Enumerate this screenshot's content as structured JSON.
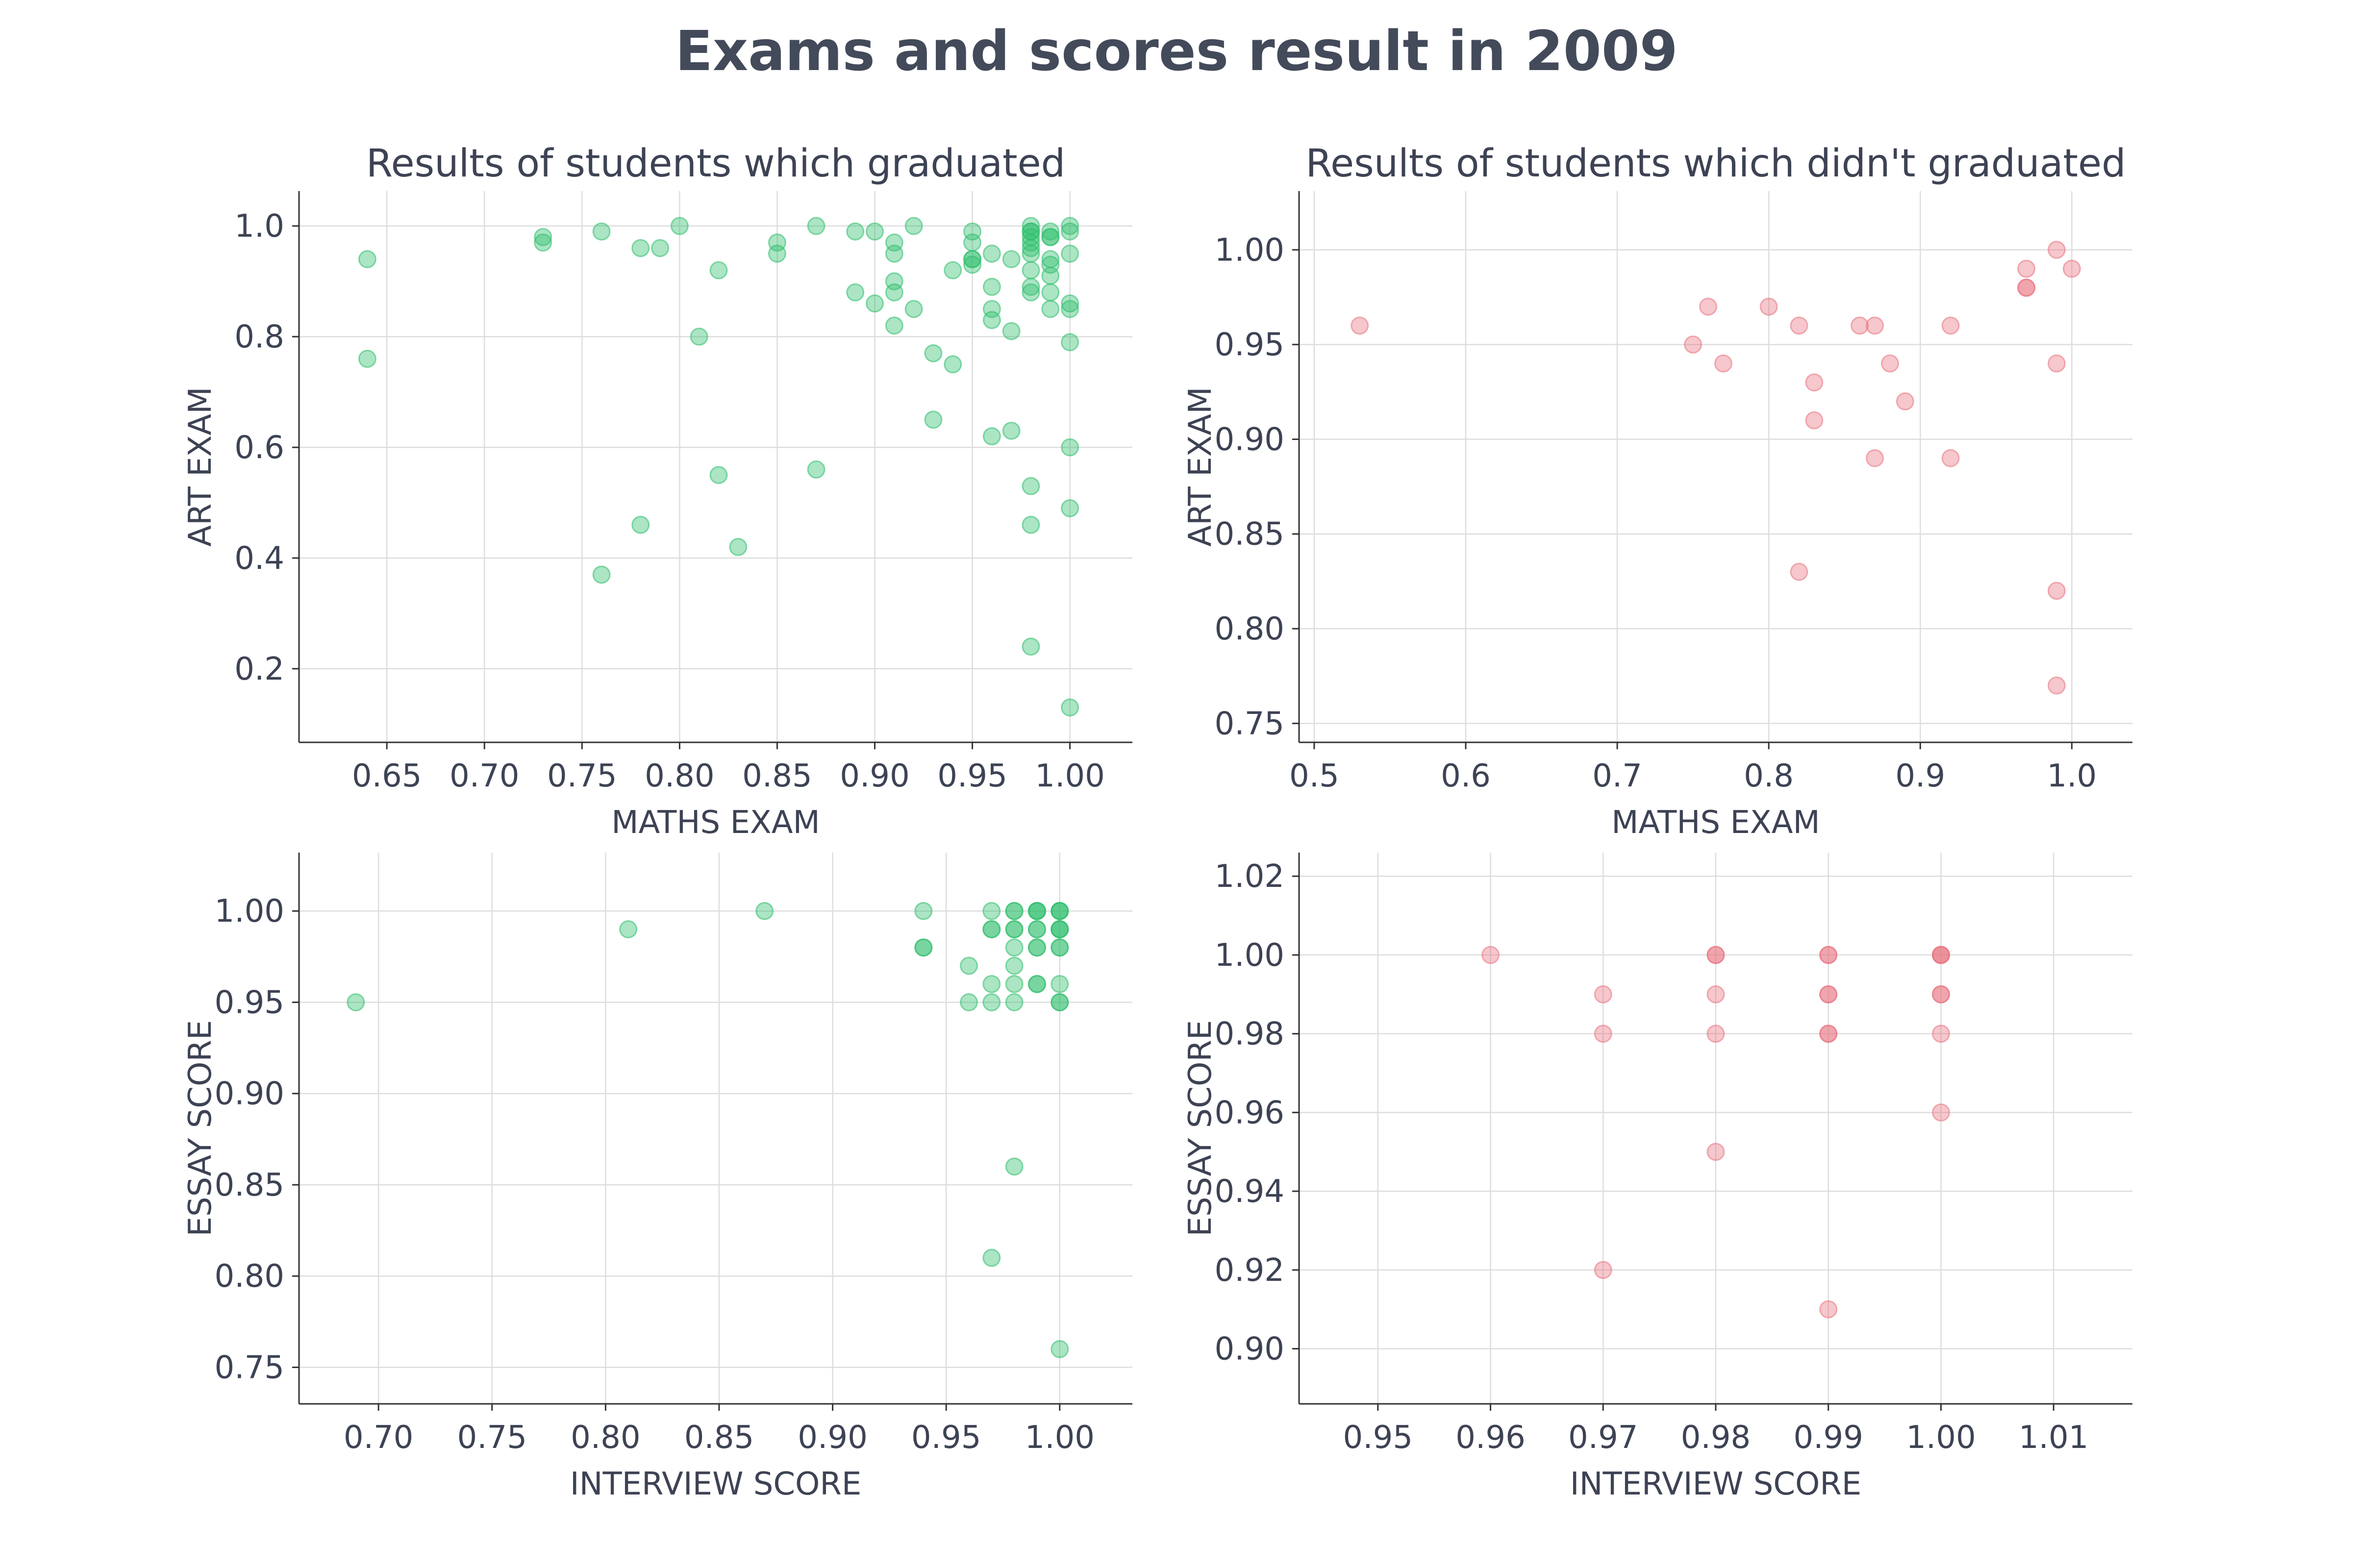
{
  "figure": {
    "title": "Exams and scores result in 2009"
  },
  "chart_data": [
    {
      "type": "scatter",
      "title": "Results of students which graduated",
      "xlabel": "MATHS EXAM",
      "ylabel": "ART EXAM",
      "xlim": [
        0.605,
        1.032
      ],
      "ylim": [
        0.067,
        1.063
      ],
      "xticks": [
        "0.65",
        "0.70",
        "0.75",
        "0.80",
        "0.85",
        "0.90",
        "0.95",
        "1.00"
      ],
      "xtick_values": [
        0.65,
        0.7,
        0.75,
        0.8,
        0.85,
        0.9,
        0.95,
        1.0
      ],
      "yticks": [
        "0.2",
        "0.4",
        "0.6",
        "0.8",
        "1.0"
      ],
      "ytick_values": [
        0.2,
        0.4,
        0.6,
        0.8,
        1.0
      ],
      "grid": true,
      "color": "#2ebd6b",
      "points": [
        [
          0.64,
          0.94
        ],
        [
          0.64,
          0.76
        ],
        [
          0.73,
          0.98
        ],
        [
          0.73,
          0.97
        ],
        [
          0.76,
          0.99
        ],
        [
          0.78,
          0.96
        ],
        [
          0.79,
          0.96
        ],
        [
          0.8,
          1.0
        ],
        [
          0.81,
          0.8
        ],
        [
          0.82,
          0.92
        ],
        [
          0.82,
          0.55
        ],
        [
          0.78,
          0.46
        ],
        [
          0.76,
          0.37
        ],
        [
          0.83,
          0.42
        ],
        [
          0.85,
          0.97
        ],
        [
          0.85,
          0.95
        ],
        [
          0.87,
          1.0
        ],
        [
          0.87,
          0.56
        ],
        [
          0.89,
          0.99
        ],
        [
          0.89,
          0.88
        ],
        [
          0.9,
          0.99
        ],
        [
          0.9,
          0.86
        ],
        [
          0.91,
          0.97
        ],
        [
          0.91,
          0.95
        ],
        [
          0.91,
          0.9
        ],
        [
          0.91,
          0.88
        ],
        [
          0.91,
          0.82
        ],
        [
          0.92,
          1.0
        ],
        [
          0.92,
          0.85
        ],
        [
          0.93,
          0.77
        ],
        [
          0.93,
          0.65
        ],
        [
          0.94,
          0.92
        ],
        [
          0.94,
          0.75
        ],
        [
          0.95,
          0.99
        ],
        [
          0.95,
          0.97
        ],
        [
          0.95,
          0.94
        ],
        [
          0.95,
          0.94
        ],
        [
          0.95,
          0.93
        ],
        [
          0.96,
          0.95
        ],
        [
          0.96,
          0.89
        ],
        [
          0.96,
          0.85
        ],
        [
          0.96,
          0.83
        ],
        [
          0.96,
          0.62
        ],
        [
          0.97,
          0.94
        ],
        [
          0.97,
          0.81
        ],
        [
          0.97,
          0.63
        ],
        [
          0.98,
          1.0
        ],
        [
          0.98,
          0.99
        ],
        [
          0.98,
          0.99
        ],
        [
          0.98,
          0.98
        ],
        [
          0.98,
          0.97
        ],
        [
          0.98,
          0.96
        ],
        [
          0.98,
          0.95
        ],
        [
          0.98,
          0.92
        ],
        [
          0.98,
          0.89
        ],
        [
          0.98,
          0.88
        ],
        [
          0.98,
          0.53
        ],
        [
          0.98,
          0.46
        ],
        [
          0.98,
          0.24
        ],
        [
          0.99,
          0.99
        ],
        [
          0.99,
          0.98
        ],
        [
          0.99,
          0.98
        ],
        [
          0.99,
          0.94
        ],
        [
          0.99,
          0.93
        ],
        [
          0.99,
          0.91
        ],
        [
          0.99,
          0.88
        ],
        [
          0.99,
          0.85
        ],
        [
          1.0,
          1.0
        ],
        [
          1.0,
          0.99
        ],
        [
          1.0,
          0.95
        ],
        [
          1.0,
          0.86
        ],
        [
          1.0,
          0.85
        ],
        [
          1.0,
          0.79
        ],
        [
          1.0,
          0.6
        ],
        [
          1.0,
          0.49
        ],
        [
          1.0,
          0.13
        ]
      ]
    },
    {
      "type": "scatter",
      "title": "Results of students which didn't graduated",
      "xlabel": "MATHS EXAM",
      "ylabel": "ART EXAM",
      "xlim": [
        0.49,
        1.04
      ],
      "ylim": [
        0.74,
        1.031
      ],
      "xticks": [
        "0.5",
        "0.6",
        "0.7",
        "0.8",
        "0.9",
        "1.0"
      ],
      "xtick_values": [
        0.5,
        0.6,
        0.7,
        0.8,
        0.9,
        1.0
      ],
      "yticks": [
        "0.75",
        "0.80",
        "0.85",
        "0.90",
        "0.95",
        "1.00"
      ],
      "ytick_values": [
        0.75,
        0.8,
        0.85,
        0.9,
        0.95,
        1.0
      ],
      "grid": true,
      "color": "#e8737f",
      "points": [
        [
          0.53,
          0.96
        ],
        [
          0.75,
          0.95
        ],
        [
          0.76,
          0.97
        ],
        [
          0.77,
          0.94
        ],
        [
          0.8,
          0.97
        ],
        [
          0.82,
          0.96
        ],
        [
          0.82,
          0.83
        ],
        [
          0.83,
          0.93
        ],
        [
          0.83,
          0.91
        ],
        [
          0.86,
          0.96
        ],
        [
          0.87,
          0.96
        ],
        [
          0.87,
          0.89
        ],
        [
          0.88,
          0.94
        ],
        [
          0.89,
          0.92
        ],
        [
          0.92,
          0.96
        ],
        [
          0.92,
          0.89
        ],
        [
          0.97,
          0.99
        ],
        [
          0.97,
          0.98
        ],
        [
          0.97,
          0.98
        ],
        [
          0.99,
          1.0
        ],
        [
          0.99,
          0.94
        ],
        [
          0.99,
          0.82
        ],
        [
          0.99,
          0.77
        ],
        [
          1.0,
          0.99
        ]
      ]
    },
    {
      "type": "scatter",
      "title": "",
      "xlabel": "INTERVIEW SCORE",
      "ylabel": "ESSAY SCORE",
      "xlim": [
        0.665,
        1.032
      ],
      "ylim": [
        0.73,
        1.032
      ],
      "xticks": [
        "0.70",
        "0.75",
        "0.80",
        "0.85",
        "0.90",
        "0.95",
        "1.00"
      ],
      "xtick_values": [
        0.7,
        0.75,
        0.8,
        0.85,
        0.9,
        0.95,
        1.0
      ],
      "yticks": [
        "0.75",
        "0.80",
        "0.85",
        "0.90",
        "0.95",
        "1.00"
      ],
      "ytick_values": [
        0.75,
        0.8,
        0.85,
        0.9,
        0.95,
        1.0
      ],
      "grid": true,
      "color": "#2ebd6b",
      "points": [
        [
          0.69,
          0.95
        ],
        [
          0.81,
          0.99
        ],
        [
          0.87,
          1.0
        ],
        [
          0.94,
          1.0
        ],
        [
          0.94,
          0.98
        ],
        [
          0.94,
          0.98
        ],
        [
          0.96,
          0.97
        ],
        [
          0.96,
          0.95
        ],
        [
          0.97,
          1.0
        ],
        [
          0.97,
          0.99
        ],
        [
          0.97,
          0.99
        ],
        [
          0.97,
          0.96
        ],
        [
          0.97,
          0.95
        ],
        [
          0.97,
          0.81
        ],
        [
          0.98,
          1.0
        ],
        [
          0.98,
          1.0
        ],
        [
          0.98,
          0.99
        ],
        [
          0.98,
          0.99
        ],
        [
          0.98,
          0.98
        ],
        [
          0.98,
          0.97
        ],
        [
          0.98,
          0.96
        ],
        [
          0.98,
          0.95
        ],
        [
          0.98,
          0.86
        ],
        [
          0.99,
          1.0
        ],
        [
          0.99,
          1.0
        ],
        [
          0.99,
          1.0
        ],
        [
          0.99,
          0.99
        ],
        [
          0.99,
          0.99
        ],
        [
          0.99,
          0.98
        ],
        [
          0.99,
          0.98
        ],
        [
          0.99,
          0.96
        ],
        [
          0.99,
          0.96
        ],
        [
          1.0,
          1.0
        ],
        [
          1.0,
          1.0
        ],
        [
          1.0,
          1.0
        ],
        [
          1.0,
          0.99
        ],
        [
          1.0,
          0.99
        ],
        [
          1.0,
          0.99
        ],
        [
          1.0,
          0.98
        ],
        [
          1.0,
          0.98
        ],
        [
          1.0,
          0.96
        ],
        [
          1.0,
          0.95
        ],
        [
          1.0,
          0.95
        ],
        [
          1.0,
          0.76
        ]
      ]
    },
    {
      "type": "scatter",
      "title": "",
      "xlabel": "INTERVIEW SCORE",
      "ylabel": "ESSAY SCORE",
      "xlim": [
        0.943,
        1.017
      ],
      "ylim": [
        0.886,
        1.026
      ],
      "xticks": [
        "0.95",
        "0.96",
        "0.97",
        "0.98",
        "0.99",
        "1.00",
        "1.01"
      ],
      "xtick_values": [
        0.95,
        0.96,
        0.97,
        0.98,
        0.99,
        1.0,
        1.01
      ],
      "yticks": [
        "0.90",
        "0.92",
        "0.94",
        "0.96",
        "0.98",
        "1.00",
        "1.02"
      ],
      "ytick_values": [
        0.9,
        0.92,
        0.94,
        0.96,
        0.98,
        1.0,
        1.02
      ],
      "grid": true,
      "color": "#e8737f",
      "points": [
        [
          0.96,
          1.0
        ],
        [
          0.97,
          0.99
        ],
        [
          0.97,
          0.98
        ],
        [
          0.97,
          0.92
        ],
        [
          0.98,
          1.0
        ],
        [
          0.98,
          1.0
        ],
        [
          0.98,
          0.99
        ],
        [
          0.98,
          0.98
        ],
        [
          0.98,
          0.95
        ],
        [
          0.99,
          1.0
        ],
        [
          0.99,
          1.0
        ],
        [
          0.99,
          0.99
        ],
        [
          0.99,
          0.99
        ],
        [
          0.99,
          0.98
        ],
        [
          0.99,
          0.98
        ],
        [
          0.99,
          0.91
        ],
        [
          1.0,
          1.0
        ],
        [
          1.0,
          1.0
        ],
        [
          1.0,
          1.0
        ],
        [
          1.0,
          0.99
        ],
        [
          1.0,
          0.99
        ],
        [
          1.0,
          0.98
        ],
        [
          1.0,
          0.96
        ]
      ]
    }
  ]
}
